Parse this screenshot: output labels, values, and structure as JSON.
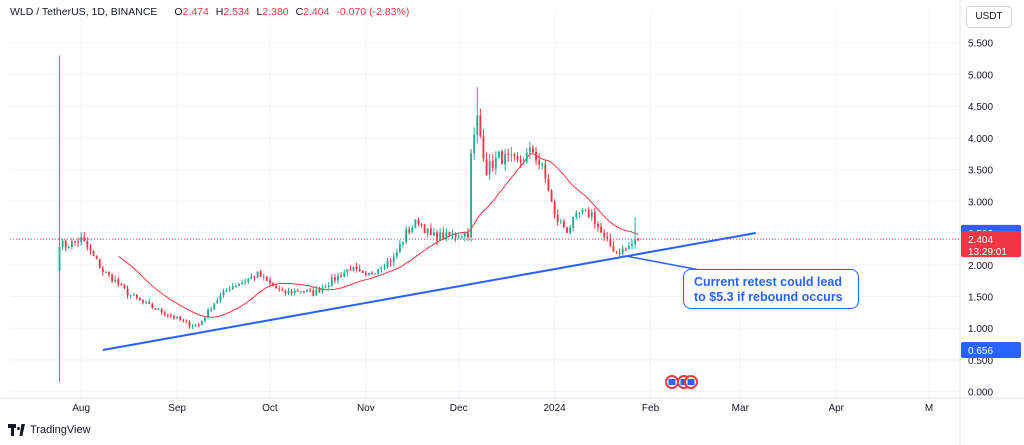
{
  "legend": {
    "symbol": "WLD / TetherUS, 1D, BINANCE",
    "open_label": "O",
    "open": "2.474",
    "high_label": "H",
    "high": "2.534",
    "low_label": "L",
    "low": "2.380",
    "close_label": "C",
    "close": "2.404",
    "change": "-0.070 (-2.83%)"
  },
  "currency_button": "USDT",
  "footer": {
    "brand": "TradingView"
  },
  "annotation": {
    "line1": "Current retest could lead",
    "line2": "to $5.3 if  rebound occurs"
  },
  "price_labels": {
    "high_marker": "2.503",
    "current_price": "2.404",
    "countdown": "13:29:01",
    "trendline_start": "0.656"
  },
  "colors": {
    "up": "#22ab94",
    "down": "#f23645",
    "ma": "#f23645",
    "trendline": "#2962ff",
    "grid": "#f0f3fa",
    "current_line": "#f23645"
  },
  "chart_data": {
    "type": "candlestick",
    "title": "WLD / TetherUS, 1D, BINANCE",
    "y_ticks": [
      "0.000",
      "0.500",
      "1.000",
      "1.500",
      "2.000",
      "2.500",
      "3.000",
      "3.500",
      "4.000",
      "4.500",
      "5.000",
      "5.500"
    ],
    "ylim": [
      -0.1,
      5.7
    ],
    "x_ticks": [
      {
        "label": "Aug",
        "day": 7
      },
      {
        "label": "Sep",
        "day": 38
      },
      {
        "label": "Oct",
        "day": 68
      },
      {
        "label": "Nov",
        "day": 99
      },
      {
        "label": "Dec",
        "day": 129
      },
      {
        "label": "2024",
        "day": 160
      },
      {
        "label": "Feb",
        "day": 191
      },
      {
        "label": "Mar",
        "day": 220
      },
      {
        "label": "Apr",
        "day": 251
      },
      {
        "label": "M",
        "day": 281
      }
    ],
    "xlim": [
      -16,
      291
    ],
    "trendline": {
      "start_day": 14,
      "start_value": 0.656,
      "end_day": 225,
      "end_value": 2.5
    },
    "current_price": 2.404,
    "price_keypoints": [
      {
        "day": 0,
        "price": 2.35
      },
      {
        "day": 2,
        "price": 2.3
      },
      {
        "day": 7,
        "price": 2.4
      },
      {
        "day": 10,
        "price": 2.2
      },
      {
        "day": 14,
        "price": 1.9
      },
      {
        "day": 18,
        "price": 1.75
      },
      {
        "day": 22,
        "price": 1.55
      },
      {
        "day": 27,
        "price": 1.4
      },
      {
        "day": 32,
        "price": 1.28
      },
      {
        "day": 38,
        "price": 1.15
      },
      {
        "day": 42,
        "price": 1.05
      },
      {
        "day": 45,
        "price": 1.05
      },
      {
        "day": 50,
        "price": 1.4
      },
      {
        "day": 55,
        "price": 1.65
      },
      {
        "day": 60,
        "price": 1.75
      },
      {
        "day": 64,
        "price": 1.85
      },
      {
        "day": 68,
        "price": 1.7
      },
      {
        "day": 72,
        "price": 1.55
      },
      {
        "day": 78,
        "price": 1.6
      },
      {
        "day": 82,
        "price": 1.55
      },
      {
        "day": 88,
        "price": 1.75
      },
      {
        "day": 94,
        "price": 1.95
      },
      {
        "day": 99,
        "price": 1.8
      },
      {
        "day": 104,
        "price": 2.0
      },
      {
        "day": 108,
        "price": 2.1
      },
      {
        "day": 112,
        "price": 2.5
      },
      {
        "day": 116,
        "price": 2.7
      },
      {
        "day": 120,
        "price": 2.45
      },
      {
        "day": 125,
        "price": 2.45
      },
      {
        "day": 132,
        "price": 2.5
      },
      {
        "day": 133,
        "price": 3.7
      },
      {
        "day": 135,
        "price": 4.3
      },
      {
        "day": 138,
        "price": 3.5
      },
      {
        "day": 142,
        "price": 3.7
      },
      {
        "day": 148,
        "price": 3.6
      },
      {
        "day": 153,
        "price": 3.8
      },
      {
        "day": 156,
        "price": 3.5
      },
      {
        "day": 158,
        "price": 3.2
      },
      {
        "day": 160,
        "price": 2.75
      },
      {
        "day": 164,
        "price": 2.55
      },
      {
        "day": 168,
        "price": 2.8
      },
      {
        "day": 172,
        "price": 2.8
      },
      {
        "day": 176,
        "price": 2.4
      },
      {
        "day": 180,
        "price": 2.2
      },
      {
        "day": 183,
        "price": 2.25
      },
      {
        "day": 187,
        "price": 2.4
      }
    ]
  }
}
